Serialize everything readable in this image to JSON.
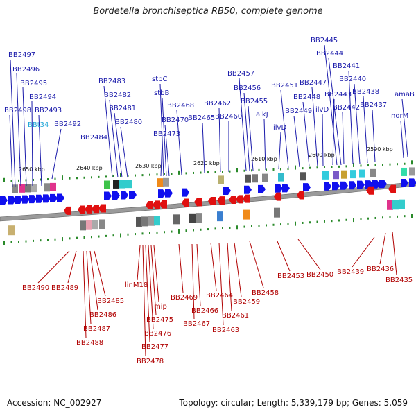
{
  "title": "Bordetella bronchiseptica RB50, complete genome",
  "footer": {
    "accession": "Accession: NC_002927",
    "summary": "Topology: circular; Length: 5,339,179 bp; Genes: 5,059"
  },
  "colors": {
    "forward_gene": "#1a1aaa",
    "reverse_gene": "#b00000",
    "rna_gene": "#22a7d8",
    "backbone": "#808080"
  },
  "ticks": [
    "2650 kbp",
    "2640 kbp",
    "2630 kbp",
    "2620 kbp",
    "2610 kbp",
    "2600 kbp",
    "2590 kbp"
  ],
  "top_genes": [
    "BB2497",
    "BB2496",
    "BB2495",
    "BB2494",
    "BB2493",
    "BB2498",
    "BBt34",
    "BB2492",
    "BB2484",
    "BB2483",
    "BB2482",
    "BB2481",
    "BB2480",
    "stbC",
    "stbB",
    "BB2470",
    "BB2473",
    "BB2468",
    "BB2465",
    "BB2462",
    "BB2460",
    "BB2457",
    "BB2456",
    "BB2455",
    "alkJ",
    "BB2451",
    "ilvD",
    "BB2449",
    "BB2448",
    "BB2447",
    "ilvD",
    "BB2445",
    "BB2444",
    "BB2443",
    "BB2442",
    "BB2441",
    "BB2440",
    "BB2438",
    "BB2437",
    "amaB",
    "norM"
  ],
  "bottom_genes": [
    "BB2490",
    "BB2489",
    "BB2485",
    "BB2486",
    "BB2487",
    "BB2488",
    "linM18",
    "mip",
    "BB2475",
    "BB2476",
    "BB2477",
    "BB2478",
    "BB2469",
    "BB2466",
    "BB2467",
    "BB2464",
    "BB2463",
    "BB2461",
    "BB2459",
    "BB2458",
    "BB2453",
    "BB2450",
    "BB2439",
    "BB2436",
    "BB2435"
  ]
}
